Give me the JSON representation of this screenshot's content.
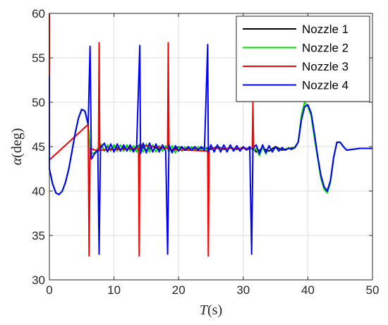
{
  "chart_data": {
    "type": "line",
    "title": "",
    "xlabel": {
      "symbol": "T",
      "unit": "(s)"
    },
    "ylabel": {
      "symbol": "α",
      "unit": "(deg)"
    },
    "xlim": [
      0,
      50
    ],
    "ylim": [
      30,
      60
    ],
    "xticks": [
      "0",
      "10",
      "20",
      "30",
      "40",
      "50"
    ],
    "yticks": [
      "30",
      "35",
      "40",
      "45",
      "50",
      "55",
      "60"
    ],
    "grid": true,
    "legend_position": "top-right",
    "series": [
      {
        "name": "Nozzle 1",
        "color": "#000000",
        "points": [
          [
            0,
            42.5
          ],
          [
            0.5,
            40.8
          ],
          [
            1.0,
            39.8
          ],
          [
            1.5,
            39.6
          ],
          [
            2.0,
            40.0
          ],
          [
            2.5,
            41.0
          ],
          [
            3.0,
            42.5
          ],
          [
            3.5,
            44.5
          ],
          [
            4.0,
            46.5
          ],
          [
            4.5,
            48.2
          ],
          [
            5.0,
            49.2
          ],
          [
            5.5,
            49.0
          ],
          [
            6.0,
            47.5
          ],
          [
            6.3,
            44.8
          ],
          [
            6.5,
            44.2
          ],
          [
            7.0,
            44.3
          ],
          [
            7.5,
            44.7
          ],
          [
            8.0,
            45.1
          ],
          [
            8.5,
            44.6
          ],
          [
            9.0,
            45.0
          ],
          [
            9.5,
            44.7
          ],
          [
            10.0,
            45.0
          ],
          [
            11.0,
            44.7
          ],
          [
            12.0,
            45.0
          ],
          [
            13.0,
            44.7
          ],
          [
            14.0,
            45.2
          ],
          [
            15.0,
            44.6
          ],
          [
            16.0,
            45.0
          ],
          [
            17.0,
            44.7
          ],
          [
            18.0,
            45.0
          ],
          [
            19.0,
            44.6
          ],
          [
            20.0,
            45.0
          ],
          [
            21.0,
            44.7
          ],
          [
            22.0,
            44.9
          ],
          [
            23.0,
            44.7
          ],
          [
            24.0,
            44.9
          ],
          [
            25.0,
            44.7
          ],
          [
            26.0,
            45.0
          ],
          [
            27.0,
            44.7
          ],
          [
            28.0,
            44.9
          ],
          [
            29.0,
            44.7
          ],
          [
            30.0,
            44.9
          ],
          [
            31.0,
            44.7
          ],
          [
            31.5,
            44.9
          ],
          [
            32.0,
            44.4
          ],
          [
            33.0,
            44.8
          ],
          [
            34.0,
            44.5
          ],
          [
            35.0,
            45.0
          ],
          [
            36.0,
            44.6
          ],
          [
            37.0,
            44.8
          ],
          [
            38.0,
            44.9
          ],
          [
            38.5,
            45.5
          ],
          [
            39.0,
            48.0
          ],
          [
            39.5,
            49.5
          ],
          [
            40.0,
            49.7
          ],
          [
            40.5,
            48.8
          ],
          [
            41.0,
            46.5
          ],
          [
            41.5,
            44.0
          ],
          [
            42.0,
            41.8
          ],
          [
            42.5,
            40.5
          ],
          [
            43.0,
            40.0
          ],
          [
            43.5,
            41.2
          ],
          [
            44.0,
            43.8
          ],
          [
            44.5,
            45.5
          ],
          [
            45.0,
            45.5
          ],
          [
            45.5,
            45.0
          ],
          [
            46.0,
            44.6
          ],
          [
            47.0,
            44.7
          ],
          [
            48.0,
            44.8
          ],
          [
            50.0,
            44.8
          ]
        ]
      },
      {
        "name": "Nozzle 2",
        "color": "#00e000",
        "points": [
          [
            0,
            42.5
          ],
          [
            0.5,
            40.8
          ],
          [
            1.0,
            39.8
          ],
          [
            1.5,
            39.6
          ],
          [
            2.0,
            40.0
          ],
          [
            2.5,
            41.0
          ],
          [
            3.0,
            42.5
          ],
          [
            3.5,
            44.5
          ],
          [
            4.0,
            46.5
          ],
          [
            4.5,
            48.2
          ],
          [
            5.0,
            49.2
          ],
          [
            5.5,
            49.0
          ],
          [
            6.0,
            47.5
          ],
          [
            6.3,
            44.8
          ],
          [
            6.5,
            44.2
          ],
          [
            7.0,
            44.3
          ],
          [
            7.5,
            44.8
          ],
          [
            8.0,
            45.3
          ],
          [
            8.5,
            44.5
          ],
          [
            9.0,
            45.2
          ],
          [
            9.5,
            44.5
          ],
          [
            10.0,
            45.2
          ],
          [
            10.5,
            44.5
          ],
          [
            11.0,
            45.2
          ],
          [
            11.5,
            44.5
          ],
          [
            12.0,
            45.2
          ],
          [
            12.5,
            44.5
          ],
          [
            13.0,
            45.1
          ],
          [
            13.5,
            44.4
          ],
          [
            14.0,
            45.3
          ],
          [
            14.5,
            44.4
          ],
          [
            15.0,
            45.3
          ],
          [
            15.5,
            44.4
          ],
          [
            16.0,
            45.2
          ],
          [
            16.5,
            44.4
          ],
          [
            17.0,
            45.1
          ],
          [
            17.5,
            44.5
          ],
          [
            18.0,
            45.1
          ],
          [
            18.5,
            44.4
          ],
          [
            19.0,
            45.1
          ],
          [
            19.5,
            44.3
          ],
          [
            20.0,
            45.0
          ],
          [
            20.5,
            44.5
          ],
          [
            21.0,
            45.0
          ],
          [
            21.5,
            44.6
          ],
          [
            22.0,
            45.0
          ],
          [
            22.5,
            44.6
          ],
          [
            23.0,
            45.0
          ],
          [
            23.5,
            44.6
          ],
          [
            24.0,
            45.0
          ],
          [
            24.5,
            44.5
          ],
          [
            25.0,
            45.1
          ],
          [
            25.5,
            44.5
          ],
          [
            26.0,
            45.1
          ],
          [
            26.5,
            44.5
          ],
          [
            27.0,
            45.1
          ],
          [
            27.5,
            44.5
          ],
          [
            28.0,
            45.1
          ],
          [
            28.5,
            44.5
          ],
          [
            29.0,
            45.1
          ],
          [
            29.5,
            44.5
          ],
          [
            30.0,
            45.0
          ],
          [
            30.5,
            44.6
          ],
          [
            31.0,
            45.0
          ],
          [
            31.5,
            44.6
          ],
          [
            32.0,
            44.8
          ],
          [
            32.5,
            44.0
          ],
          [
            33.0,
            45.0
          ],
          [
            33.5,
            44.2
          ],
          [
            34.0,
            45.1
          ],
          [
            34.5,
            44.4
          ],
          [
            35.0,
            45.0
          ],
          [
            35.5,
            44.5
          ],
          [
            36.0,
            44.9
          ],
          [
            36.5,
            44.6
          ],
          [
            37.0,
            44.9
          ],
          [
            37.5,
            44.7
          ],
          [
            38.0,
            45.0
          ],
          [
            38.5,
            45.5
          ],
          [
            39.0,
            48.5
          ],
          [
            39.5,
            50.0
          ],
          [
            40.0,
            49.5
          ],
          [
            40.5,
            48.5
          ],
          [
            41.0,
            46.0
          ],
          [
            41.5,
            43.8
          ],
          [
            42.0,
            41.5
          ],
          [
            42.5,
            40.2
          ],
          [
            43.0,
            39.8
          ],
          [
            43.5,
            41.0
          ],
          [
            44.0,
            43.8
          ],
          [
            44.5,
            45.5
          ],
          [
            45.0,
            45.5
          ],
          [
            45.5,
            45.0
          ],
          [
            46.0,
            44.6
          ],
          [
            47.0,
            44.7
          ],
          [
            48.0,
            44.8
          ],
          [
            50.0,
            44.8
          ]
        ]
      },
      {
        "name": "Nozzle 3",
        "color": "#ff0000",
        "points": [
          [
            0,
            60
          ],
          [
            0,
            43.5
          ],
          [
            6.0,
            47.5
          ],
          [
            6.15,
            32.7
          ],
          [
            6.3,
            44.8
          ],
          [
            7.6,
            44.5
          ],
          [
            7.7,
            56.7
          ],
          [
            7.8,
            44.6
          ],
          [
            13.8,
            44.8
          ],
          [
            13.9,
            32.7
          ],
          [
            14.0,
            45.2
          ],
          [
            18.3,
            44.8
          ],
          [
            18.4,
            56.7
          ],
          [
            18.5,
            44.7
          ],
          [
            24.5,
            44.5
          ],
          [
            24.6,
            32.7
          ],
          [
            24.7,
            44.8
          ],
          [
            31.4,
            44.8
          ],
          [
            31.5,
            50.0
          ],
          [
            31.6,
            44.8
          ]
        ]
      },
      {
        "name": "Nozzle 4",
        "color": "#0000ff",
        "points": [
          [
            0,
            53.0
          ],
          [
            0,
            42.5
          ],
          [
            0.5,
            40.8
          ],
          [
            1.0,
            39.8
          ],
          [
            1.5,
            39.6
          ],
          [
            2.0,
            40.0
          ],
          [
            2.5,
            41.0
          ],
          [
            3.0,
            42.5
          ],
          [
            3.5,
            44.5
          ],
          [
            4.0,
            46.5
          ],
          [
            4.5,
            48.2
          ],
          [
            5.0,
            49.2
          ],
          [
            5.5,
            49.0
          ],
          [
            6.0,
            47.5
          ],
          [
            6.3,
            56.3
          ],
          [
            6.5,
            43.6
          ],
          [
            7.0,
            44.2
          ],
          [
            7.5,
            44.6
          ],
          [
            7.7,
            32.9
          ],
          [
            7.9,
            44.8
          ],
          [
            8.5,
            45.4
          ],
          [
            9.0,
            44.4
          ],
          [
            9.5,
            45.3
          ],
          [
            10.0,
            44.4
          ],
          [
            10.5,
            45.3
          ],
          [
            11.0,
            44.5
          ],
          [
            11.5,
            45.2
          ],
          [
            12.0,
            44.5
          ],
          [
            12.5,
            45.2
          ],
          [
            13.0,
            44.4
          ],
          [
            13.5,
            45.1
          ],
          [
            14.0,
            56.4
          ],
          [
            14.1,
            44.2
          ],
          [
            14.5,
            45.4
          ],
          [
            15.0,
            44.3
          ],
          [
            15.5,
            45.4
          ],
          [
            16.0,
            44.4
          ],
          [
            16.5,
            45.3
          ],
          [
            17.0,
            44.4
          ],
          [
            17.5,
            45.2
          ],
          [
            18.0,
            44.5
          ],
          [
            18.3,
            32.9
          ],
          [
            18.5,
            45.2
          ],
          [
            19.0,
            44.3
          ],
          [
            19.5,
            45.1
          ],
          [
            20.0,
            44.5
          ],
          [
            20.5,
            45.0
          ],
          [
            21.0,
            44.6
          ],
          [
            21.5,
            45.0
          ],
          [
            22.0,
            44.6
          ],
          [
            22.5,
            45.0
          ],
          [
            23.0,
            44.6
          ],
          [
            23.5,
            45.0
          ],
          [
            24.0,
            44.6
          ],
          [
            24.5,
            56.5
          ],
          [
            24.6,
            44.4
          ],
          [
            25.0,
            45.2
          ],
          [
            25.5,
            44.4
          ],
          [
            26.0,
            45.2
          ],
          [
            26.5,
            44.4
          ],
          [
            27.0,
            45.2
          ],
          [
            27.5,
            44.4
          ],
          [
            28.0,
            45.2
          ],
          [
            28.5,
            44.5
          ],
          [
            29.0,
            45.1
          ],
          [
            29.5,
            44.5
          ],
          [
            30.0,
            45.0
          ],
          [
            30.5,
            44.6
          ],
          [
            31.0,
            45.0
          ],
          [
            31.3,
            32.9
          ],
          [
            31.5,
            44.8
          ],
          [
            32.0,
            45.2
          ],
          [
            32.5,
            44.2
          ],
          [
            33.0,
            45.2
          ],
          [
            33.5,
            44.3
          ],
          [
            34.0,
            45.1
          ],
          [
            34.5,
            44.4
          ],
          [
            35.0,
            45.0
          ],
          [
            35.5,
            44.5
          ],
          [
            36.0,
            44.9
          ],
          [
            36.5,
            44.6
          ],
          [
            37.0,
            44.8
          ],
          [
            37.5,
            44.7
          ],
          [
            38.0,
            44.9
          ],
          [
            38.5,
            45.5
          ],
          [
            39.0,
            48.0
          ],
          [
            39.5,
            49.5
          ],
          [
            40.0,
            49.7
          ],
          [
            40.5,
            48.8
          ],
          [
            41.0,
            46.5
          ],
          [
            41.5,
            44.0
          ],
          [
            42.0,
            41.8
          ],
          [
            42.5,
            40.5
          ],
          [
            43.0,
            40.0
          ],
          [
            43.5,
            41.2
          ],
          [
            44.0,
            43.8
          ],
          [
            44.5,
            45.5
          ],
          [
            45.0,
            45.5
          ],
          [
            45.5,
            45.0
          ],
          [
            46.0,
            44.6
          ],
          [
            47.0,
            44.7
          ],
          [
            48.0,
            44.8
          ],
          [
            50.0,
            44.8
          ]
        ]
      }
    ]
  }
}
